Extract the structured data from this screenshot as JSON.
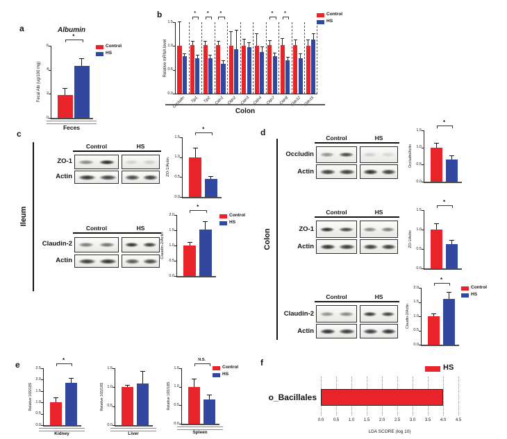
{
  "colors": {
    "control": "#E8232A",
    "hs": "#32479F",
    "axis": "#1a1a1a",
    "baseline": "#4a4a4a"
  },
  "panel_labels": {
    "a": "a",
    "b": "b",
    "c": "c",
    "d": "d",
    "e": "e",
    "f": "f"
  },
  "legend": {
    "control_label": "Control",
    "hs_label": "HS"
  },
  "chart_data": [
    {
      "id": "a",
      "type": "bar",
      "title": "Albumin",
      "ylabel": "Fecal Alb (ug/100 mg)",
      "xlabel": "Feces",
      "ylim": [
        0,
        6
      ],
      "yticks": [
        "0",
        "2",
        "4",
        "6"
      ],
      "series": [
        {
          "name": "Control",
          "values": [
            1.9
          ],
          "errors": [
            0.5
          ]
        },
        {
          "name": "HS",
          "values": [
            4.3
          ],
          "errors": [
            0.6
          ]
        }
      ],
      "sig": "*",
      "legend": true
    },
    {
      "id": "b",
      "type": "grouped-bar",
      "ylabel": "Relative mRNA level",
      "xlabel": "Colon",
      "ylim": [
        0,
        1.5
      ],
      "yticks": [
        "0.0",
        "0.5",
        "1.0",
        "1.5"
      ],
      "categories": [
        "Occludin",
        "Tjp1",
        "Tjp2",
        "Cldn1",
        "Cldn2",
        "Cldn3",
        "Cldn4",
        "Cldn7",
        "Cldn8",
        "Cldn12",
        "Cldn15"
      ],
      "series": [
        {
          "name": "Control",
          "values": [
            1.0,
            1.02,
            1.02,
            1.02,
            1.0,
            1.0,
            1.0,
            1.02,
            1.02,
            1.02,
            1.0
          ],
          "errors": [
            0.5,
            0.07,
            0.07,
            0.07,
            0.3,
            0.13,
            0.25,
            0.08,
            0.13,
            0.1,
            0.12
          ]
        },
        {
          "name": "HS",
          "values": [
            0.78,
            0.75,
            0.75,
            0.63,
            0.93,
            0.98,
            0.88,
            0.79,
            0.7,
            0.75,
            1.13
          ],
          "errors": [
            0.05,
            0.05,
            0.05,
            0.05,
            0.4,
            0.08,
            0.1,
            0.06,
            0.06,
            0.08,
            0.12
          ]
        }
      ],
      "sig": "*",
      "sig_groups": [
        1,
        2,
        3,
        7,
        8
      ],
      "legend": true
    },
    {
      "id": "c1",
      "type": "bar",
      "ylabel": "ZO-1/Actin",
      "ylim": [
        0,
        1.5
      ],
      "yticks": [
        "0.0",
        "0.5",
        "1.0",
        "1.5"
      ],
      "series": [
        {
          "name": "Control",
          "values": [
            1.0
          ],
          "errors": [
            0.22
          ]
        },
        {
          "name": "HS",
          "values": [
            0.45
          ],
          "errors": [
            0.06
          ]
        }
      ],
      "sig": "*"
    },
    {
      "id": "c2",
      "type": "bar",
      "ylabel": "Claudin-2/Actin",
      "ylim": [
        0,
        2
      ],
      "yticks": [
        "0.0",
        "0.5",
        "1.0",
        "1.5",
        "2.0"
      ],
      "series": [
        {
          "name": "Control",
          "values": [
            1.0
          ],
          "errors": [
            0.1
          ]
        },
        {
          "name": "HS",
          "values": [
            1.53
          ],
          "errors": [
            0.25
          ]
        }
      ],
      "sig": "*",
      "legend": true
    },
    {
      "id": "d1",
      "type": "bar",
      "ylabel": "Occludin/Actin",
      "ylim": [
        0,
        1.5
      ],
      "yticks": [
        "0.0",
        "0.5",
        "1.0",
        "1.5"
      ],
      "series": [
        {
          "name": "Control",
          "values": [
            1.0
          ],
          "errors": [
            0.12
          ]
        },
        {
          "name": "HS",
          "values": [
            0.65
          ],
          "errors": [
            0.1
          ]
        }
      ],
      "sig": "*"
    },
    {
      "id": "d2",
      "type": "bar",
      "ylabel": "ZO-1/Actin",
      "ylim": [
        0,
        1.5
      ],
      "yticks": [
        "0.0",
        "0.5",
        "1.0",
        "1.5"
      ],
      "series": [
        {
          "name": "Control",
          "values": [
            1.0
          ],
          "errors": [
            0.15
          ]
        },
        {
          "name": "HS",
          "values": [
            0.63
          ],
          "errors": [
            0.08
          ]
        }
      ],
      "sig": "*"
    },
    {
      "id": "d3",
      "type": "bar",
      "ylabel": "Claudin-2/Actin",
      "ylim": [
        0,
        2
      ],
      "yticks": [
        "0.0",
        "0.5",
        "1.0",
        "1.5",
        "2.0"
      ],
      "series": [
        {
          "name": "Control",
          "values": [
            1.0
          ],
          "errors": [
            0.08
          ]
        },
        {
          "name": "HS",
          "values": [
            1.62
          ],
          "errors": [
            0.2
          ]
        }
      ],
      "sig": "*",
      "legend": true
    },
    {
      "id": "e1",
      "type": "bar",
      "ylabel": "Relative 16S/18S",
      "xlabel": "Kidney",
      "ylim": [
        0,
        2.5
      ],
      "yticks": [
        "0.0",
        "0.5",
        "1.0",
        "1.5",
        "2.0",
        "2.5"
      ],
      "series": [
        {
          "name": "Control",
          "values": [
            1.0
          ],
          "errors": [
            0.18
          ]
        },
        {
          "name": "HS",
          "values": [
            1.85
          ],
          "errors": [
            0.2
          ]
        }
      ],
      "sig": "*"
    },
    {
      "id": "e2",
      "type": "bar",
      "ylabel": "Relative 16S/18S",
      "xlabel": "Liver",
      "ylim": [
        0,
        1.5
      ],
      "yticks": [
        "0.0",
        "0.5",
        "1.0",
        "1.5"
      ],
      "series": [
        {
          "name": "Control",
          "values": [
            1.0
          ],
          "errors": [
            0.04
          ]
        },
        {
          "name": "HS",
          "values": [
            1.1
          ],
          "errors": [
            0.3
          ]
        }
      ],
      "sig": null
    },
    {
      "id": "e3",
      "type": "bar",
      "ylabel": "Relative 16S/18S",
      "xlabel": "Spleen",
      "ylim": [
        0,
        1.5
      ],
      "yticks": [
        "0.0",
        "0.5",
        "1.0",
        "1.5"
      ],
      "series": [
        {
          "name": "Control",
          "values": [
            1.0
          ],
          "errors": [
            0.2
          ]
        },
        {
          "name": "HS",
          "values": [
            0.65
          ],
          "errors": [
            0.12
          ]
        }
      ],
      "sig": "N.S.",
      "legend": true
    },
    {
      "id": "f",
      "type": "hbar",
      "categories": [
        "o_Bacillales"
      ],
      "values": [
        4.0
      ],
      "xlim": [
        0,
        4.5
      ],
      "xticks": [
        "0.0",
        "0.5",
        "1.0",
        "1.5",
        "2.0",
        "2.5",
        "3.0",
        "3.5",
        "4.0",
        "4.5"
      ],
      "xlabel": "LDA SCORE (log 10)",
      "legend": [
        {
          "label": "HS"
        }
      ]
    }
  ],
  "blots": {
    "c": {
      "side_label": "Ileum",
      "col_headers": [
        "Control",
        "HS"
      ],
      "rows": [
        {
          "protein": "ZO-1",
          "loading": "Actin",
          "protein_bands": [
            [
              0.5,
              0.95
            ],
            [
              0.14,
              0.16
            ]
          ],
          "loading_bands": [
            [
              0.88,
              0.82
            ],
            [
              0.8,
              0.85
            ]
          ]
        },
        {
          "protein": "Claudin-2",
          "loading": "Actin",
          "protein_bands": [
            [
              0.55,
              0.6
            ],
            [
              0.9,
              0.85
            ]
          ],
          "loading_bands": [
            [
              0.85,
              0.9
            ],
            [
              0.72,
              0.8
            ]
          ]
        }
      ]
    },
    "d": {
      "side_label": "Colon",
      "col_headers": [
        "Control",
        "HS"
      ],
      "rows": [
        {
          "protein": "Occludin",
          "loading": "Actin",
          "protein_bands": [
            [
              0.45,
              0.8
            ],
            [
              0.16,
              0.13
            ]
          ],
          "loading_bands": [
            [
              0.85,
              0.85
            ],
            [
              0.92,
              0.85
            ]
          ]
        },
        {
          "protein": "ZO-1",
          "loading": "Actin",
          "protein_bands": [
            [
              0.92,
              0.8
            ],
            [
              0.5,
              0.55
            ]
          ],
          "loading_bands": [
            [
              0.9,
              0.85
            ],
            [
              0.85,
              0.85
            ]
          ]
        },
        {
          "protein": "Claudin-2",
          "loading": "Actin",
          "protein_bands": [
            [
              0.45,
              0.5
            ],
            [
              0.88,
              0.82
            ]
          ],
          "loading_bands": [
            [
              0.9,
              0.85
            ],
            [
              0.85,
              0.9
            ]
          ]
        }
      ]
    }
  }
}
